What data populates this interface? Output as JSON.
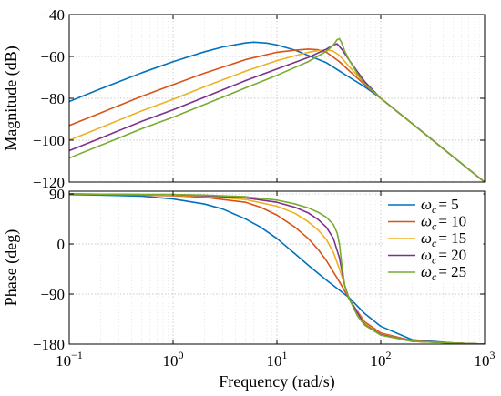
{
  "chart_data": [
    {
      "type": "line",
      "panel": "magnitude",
      "xscale": "log",
      "xlim": [
        0.1,
        1000
      ],
      "ylim": [
        -120,
        -40
      ],
      "xlabel": "",
      "ylabel": "Magnitude (dB)",
      "xticks": [
        0.1,
        1,
        10,
        100,
        1000
      ],
      "yticks": [
        -120,
        -100,
        -80,
        -60,
        -40
      ],
      "ytick_labels": [
        "−120",
        "−100",
        "−80",
        "−60",
        "−40"
      ],
      "grid": true,
      "series": [
        {
          "color": "#0072BD",
          "x": [
            0.1,
            0.2,
            0.5,
            1,
            2,
            3,
            5,
            6,
            8,
            10,
            15,
            20,
            30,
            50,
            70,
            100,
            200,
            500,
            1000
          ],
          "y": [
            -81.5,
            -75.5,
            -67.8,
            -62.5,
            -57.8,
            -55.5,
            -53.5,
            -53.2,
            -53.6,
            -54.5,
            -57.0,
            -59.5,
            -63.0,
            -70.0,
            -74.5,
            -80.0,
            -92.0,
            -108.0,
            -120.0
          ]
        },
        {
          "color": "#D95319",
          "x": [
            0.1,
            0.2,
            0.5,
            1,
            2,
            5,
            10,
            15,
            20,
            25,
            30,
            40,
            50,
            70,
            100,
            200,
            500,
            1000
          ],
          "y": [
            -93.0,
            -87.0,
            -79.0,
            -73.5,
            -68.0,
            -61.5,
            -58.0,
            -57.0,
            -56.5,
            -56.8,
            -58.0,
            -62.5,
            -67.0,
            -73.5,
            -80.0,
            -92.0,
            -108.0,
            -120.0
          ]
        },
        {
          "color": "#EDB120",
          "x": [
            0.1,
            0.2,
            0.5,
            1,
            2,
            5,
            10,
            20,
            25,
            30,
            35,
            40,
            50,
            70,
            100,
            200,
            500,
            1000
          ],
          "y": [
            -100.0,
            -94.0,
            -86.0,
            -80.5,
            -74.5,
            -67.0,
            -62.0,
            -58.0,
            -57.2,
            -56.8,
            -57.5,
            -59.5,
            -65.0,
            -73.0,
            -80.0,
            -92.0,
            -108.0,
            -120.0
          ]
        },
        {
          "color": "#7E2F8E",
          "x": [
            0.1,
            0.2,
            0.5,
            1,
            2,
            5,
            10,
            20,
            30,
            35,
            38,
            42,
            50,
            70,
            100,
            200,
            500,
            1000
          ],
          "y": [
            -105.0,
            -99.0,
            -91.0,
            -85.5,
            -79.5,
            -71.5,
            -66.0,
            -60.5,
            -56.5,
            -54.5,
            -54.0,
            -56.5,
            -62.0,
            -72.0,
            -80.0,
            -92.0,
            -108.0,
            -120.0
          ]
        },
        {
          "color": "#77AC30",
          "x": [
            0.1,
            0.2,
            0.5,
            1,
            2,
            5,
            10,
            20,
            30,
            35,
            38,
            40,
            42,
            45,
            50,
            60,
            70,
            100,
            200,
            500,
            1000
          ],
          "y": [
            -108.5,
            -102.5,
            -94.5,
            -89.0,
            -83.0,
            -75.0,
            -69.0,
            -62.5,
            -57.5,
            -54.5,
            -52.0,
            -51.5,
            -53.5,
            -57.5,
            -62.0,
            -68.5,
            -73.0,
            -80.0,
            -92.0,
            -108.0,
            -120.0
          ]
        }
      ]
    },
    {
      "type": "line",
      "panel": "phase",
      "xscale": "log",
      "xlim": [
        0.1,
        1000
      ],
      "ylim": [
        -180,
        95
      ],
      "xlabel": "Frequency (rad/s)",
      "ylabel": "Phase (deg)",
      "xticks": [
        0.1,
        1,
        10,
        100,
        1000
      ],
      "xtick_bases": [
        "10",
        "10",
        "10",
        "10",
        "10"
      ],
      "xtick_exponents": [
        "−1",
        "0",
        "1",
        "2",
        "3"
      ],
      "yticks": [
        -180,
        -90,
        0,
        90
      ],
      "ytick_labels": [
        "−180",
        "−90",
        "0",
        "90"
      ],
      "grid": true,
      "legend": "top-right",
      "series": [
        {
          "name": "ω_c = 5",
          "legend_symbol": "ω",
          "legend_sub": "c",
          "legend_value": "= 5",
          "color": "#0072BD",
          "x": [
            0.1,
            0.2,
            0.5,
            1,
            2,
            3,
            5,
            7,
            10,
            15,
            20,
            30,
            50,
            70,
            100,
            200,
            500,
            1000
          ],
          "y": [
            89,
            88,
            86,
            81,
            72,
            63,
            45,
            30,
            10,
            -18,
            -38,
            -65,
            -97,
            -125,
            -148,
            -172,
            -178,
            -180
          ]
        },
        {
          "name": "ω_c = 10",
          "legend_symbol": "ω",
          "legend_sub": "c",
          "legend_value": "= 10",
          "color": "#D95319",
          "x": [
            0.1,
            0.2,
            0.5,
            1,
            2,
            5,
            7,
            10,
            15,
            20,
            25,
            30,
            40,
            50,
            70,
            100,
            200,
            500,
            1000
          ],
          "y": [
            90,
            89,
            88,
            87,
            84,
            75,
            66,
            52,
            30,
            10,
            -10,
            -30,
            -68,
            -100,
            -140,
            -160,
            -174,
            -178,
            -180
          ]
        },
        {
          "name": "ω_c = 15",
          "legend_symbol": "ω",
          "legend_sub": "c",
          "legend_value": "= 15",
          "color": "#EDB120",
          "x": [
            0.1,
            0.5,
            1,
            2,
            5,
            10,
            15,
            20,
            25,
            30,
            35,
            40,
            50,
            70,
            100,
            200,
            500,
            1000
          ],
          "y": [
            90,
            89,
            88,
            86,
            80,
            68,
            55,
            40,
            25,
            8,
            -15,
            -45,
            -100,
            -143,
            -162,
            -175,
            -178,
            -180
          ]
        },
        {
          "name": "ω_c = 20",
          "legend_symbol": "ω",
          "legend_sub": "c",
          "legend_value": "= 20",
          "color": "#7E2F8E",
          "x": [
            0.1,
            0.5,
            1,
            2,
            5,
            10,
            15,
            20,
            25,
            30,
            35,
            40,
            45,
            50,
            70,
            100,
            200,
            500,
            1000
          ],
          "y": [
            90,
            89,
            89,
            87,
            83,
            75,
            66,
            56,
            44,
            30,
            10,
            -25,
            -75,
            -100,
            -145,
            -163,
            -175,
            -178,
            -180
          ]
        },
        {
          "name": "ω_c = 25",
          "legend_symbol": "ω",
          "legend_sub": "c",
          "legend_value": "= 25",
          "color": "#77AC30",
          "x": [
            0.1,
            0.5,
            1,
            2,
            5,
            10,
            15,
            20,
            25,
            30,
            35,
            38,
            40,
            42,
            45,
            50,
            60,
            70,
            100,
            200,
            500,
            1000
          ],
          "y": [
            90,
            89,
            89,
            88,
            85,
            79,
            72,
            65,
            57,
            48,
            35,
            20,
            0,
            -35,
            -75,
            -100,
            -130,
            -146,
            -164,
            -175,
            -178,
            -180
          ]
        }
      ]
    }
  ]
}
